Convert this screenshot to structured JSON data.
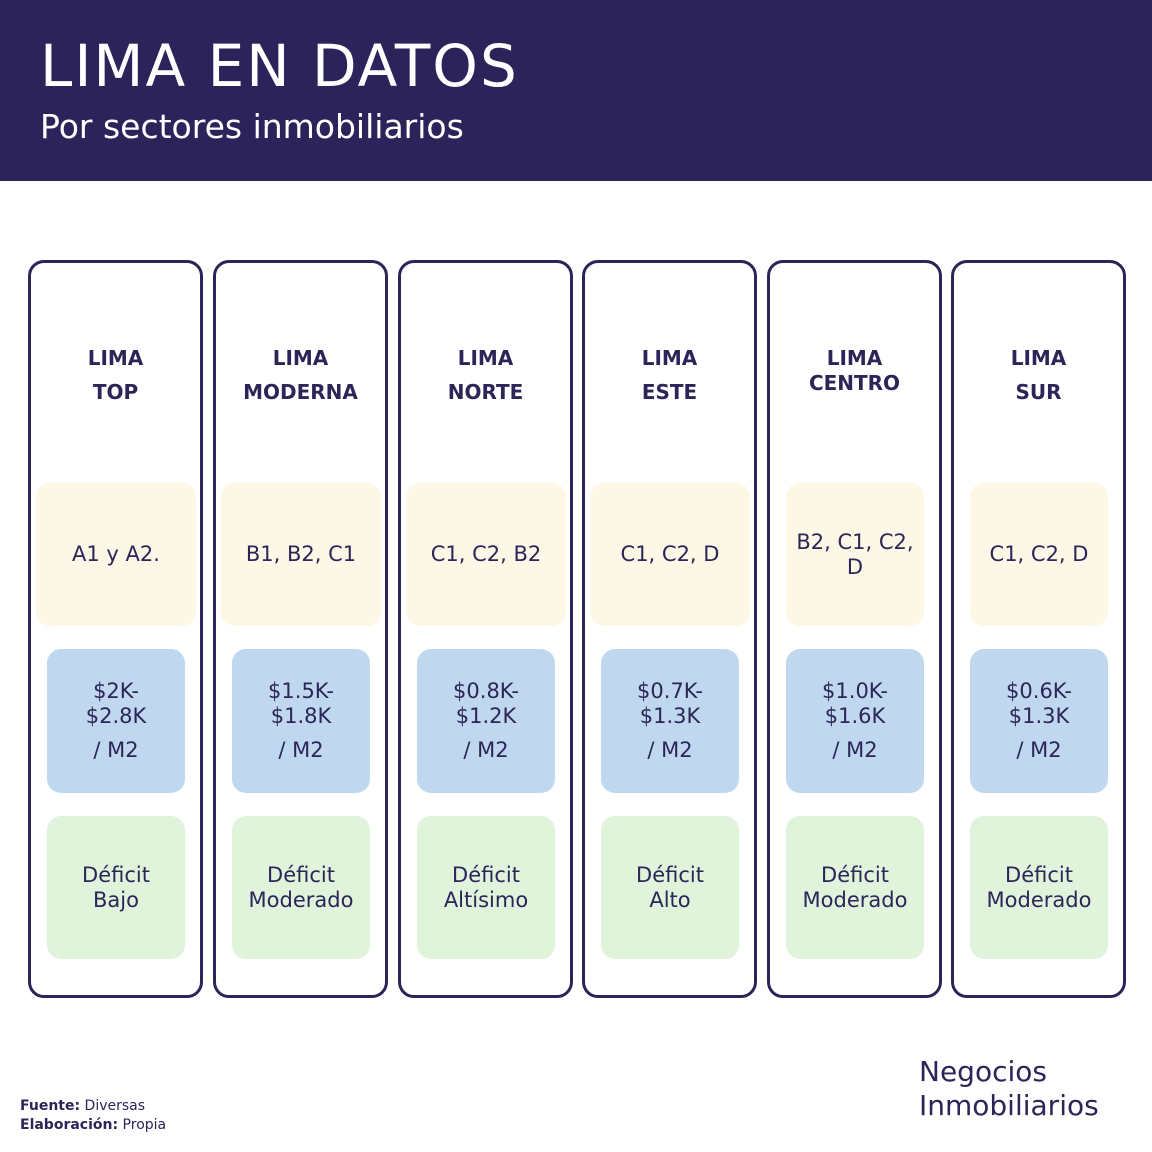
{
  "header": {
    "title": "LIMA EN DATOS",
    "subtitle": "Por sectores inmobiliarios"
  },
  "sectors": [
    {
      "line1": "LIMA",
      "line2": "TOP",
      "segments": "A1 y A2.",
      "price_line1": "$2K-",
      "price_line2": "$2.8K",
      "price_unit": "/ M2",
      "deficit_line1": "Déficit",
      "deficit_line2": "Bajo"
    },
    {
      "line1": "LIMA",
      "line2": "MODERNA",
      "segments": "B1, B2, C1",
      "price_line1": "$1.5K-",
      "price_line2": "$1.8K",
      "price_unit": "/ M2",
      "deficit_line1": "Déficit",
      "deficit_line2": "Moderado"
    },
    {
      "line1": "LIMA",
      "line2": "NORTE",
      "segments": "C1, C2, B2",
      "price_line1": "$0.8K-",
      "price_line2": "$1.2K",
      "price_unit": "/ M2",
      "deficit_line1": "Déficit",
      "deficit_line2": "Altísimo"
    },
    {
      "line1": "LIMA",
      "line2": "ESTE",
      "segments": "C1, C2, D",
      "price_line1": "$0.7K-",
      "price_line2": "$1.3K",
      "price_unit": "/ M2",
      "deficit_line1": "Déficit",
      "deficit_line2": "Alto"
    },
    {
      "line1": "LIMA",
      "line2": "CENTRO",
      "segments": "B2, C1, C2, D",
      "price_line1": "$1.0K-",
      "price_line2": "$1.6K",
      "price_unit": "/ M2",
      "deficit_line1": "Déficit",
      "deficit_line2": "Moderado"
    },
    {
      "line1": "LIMA",
      "line2": "SUR",
      "segments": "C1, C2, D",
      "price_line1": "$0.6K-",
      "price_line2": "$1.3K",
      "price_unit": "/ M2",
      "deficit_line1": "Déficit",
      "deficit_line2": "Moderado"
    }
  ],
  "brand": {
    "line1": "Negocios",
    "line2": "Inmobiliarios"
  },
  "footer": {
    "source_label": "Fuente:",
    "source_value": "Diversas",
    "made_label": "Elaboración:",
    "made_value": "Propia"
  },
  "colors": {
    "header_bg": "#2c235b",
    "text": "#2b2558",
    "segment_bg": "#fdf7e6",
    "price_bg": "#bfd8ef",
    "deficit_bg": "#e0f4dc"
  }
}
